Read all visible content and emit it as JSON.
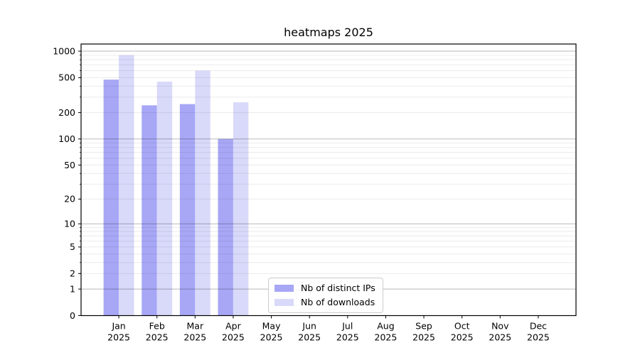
{
  "colors": {
    "distinct_ips": "#a7a7f6",
    "downloads": "#d9d9fa",
    "grid_major": "rgba(0,0,0,0.28)",
    "grid_minor": "rgba(0,0,0,0.08)",
    "axis": "#000000",
    "legend_border": "#cbcbcb",
    "text": "#000000"
  },
  "chart_data": {
    "type": "bar",
    "title": "heatmaps 2025",
    "categories": [
      "Jan",
      "Feb",
      "Mar",
      "Apr",
      "May",
      "Jun",
      "Jul",
      "Aug",
      "Sep",
      "Oct",
      "Nov",
      "Dec"
    ],
    "category_year": "2025",
    "series": [
      {
        "name": "Nb of distinct IPs",
        "color_key": "distinct_ips",
        "values": [
          475,
          242,
          250,
          100,
          0,
          0,
          0,
          0,
          0,
          0,
          0,
          0
        ]
      },
      {
        "name": "Nb of downloads",
        "color_key": "downloads",
        "values": [
          900,
          450,
          600,
          262,
          0,
          0,
          0,
          0,
          0,
          0,
          0,
          0
        ]
      }
    ],
    "y_scale": "log10(1+y)",
    "y_ticks": [
      0,
      1,
      2,
      5,
      10,
      20,
      50,
      100,
      200,
      500,
      1000
    ],
    "ylim": [
      0,
      1205
    ],
    "xlabel": "",
    "ylabel": "",
    "grid": "horizontal, minor 2-9 per decade light, major at powers of 10 darker, drawn over bars",
    "legend_position": "inside axes, lower center-left"
  }
}
